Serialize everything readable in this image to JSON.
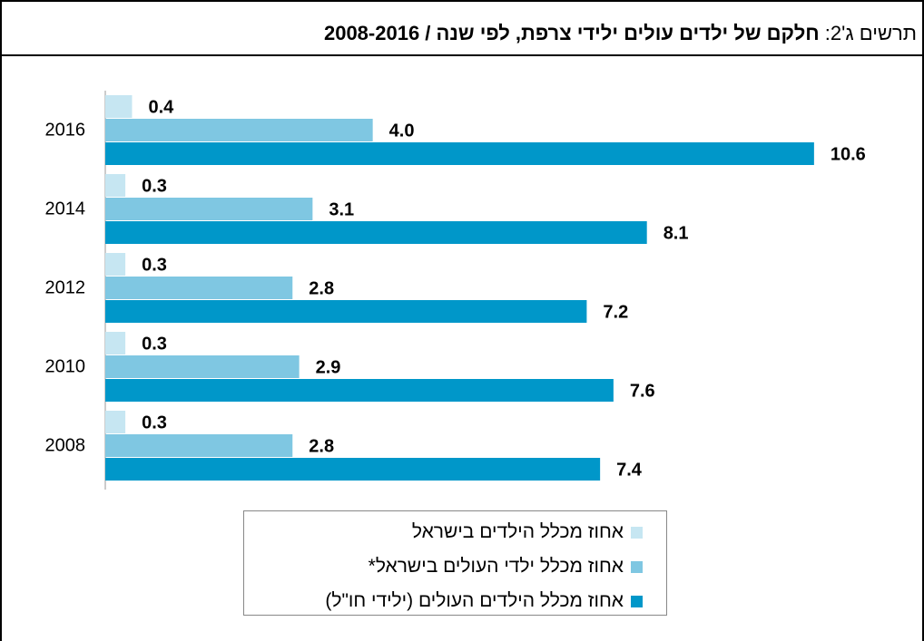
{
  "chart_data": {
    "type": "hbar",
    "title_label": "תרשים ג'2:",
    "title": "חלקם של ילדים עולים ילידי צרפת, לפי שנה / 2008-2016",
    "categories": [
      "2016",
      "2014",
      "2012",
      "2010",
      "2008"
    ],
    "xlim": [
      0,
      12
    ],
    "series": [
      {
        "name": "אחוז מכלל הילדים בישראל",
        "color": "#c6e6f2",
        "values": [
          0.4,
          0.3,
          0.3,
          0.3,
          0.3
        ]
      },
      {
        "name": "אחוז מכלל ילדי העולים בישראל*",
        "color": "#7fc7e2",
        "values": [
          4,
          3.1,
          2.8,
          2.9,
          2.8
        ],
        "value_labels": [
          "4.0",
          "3.1",
          "2.8",
          "2.9",
          "2.8"
        ]
      },
      {
        "name": "אחוז מכלל הילדים העולים (ילידי חו\"ל)",
        "color": "#0097c9",
        "values": [
          10.6,
          8.1,
          7.2,
          7.6,
          7.4
        ]
      }
    ]
  }
}
